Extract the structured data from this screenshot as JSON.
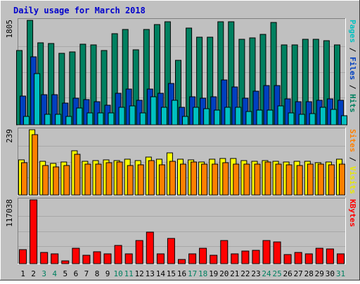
{
  "chart_data": {
    "type": "bar",
    "title": "Daily usage for March 2018",
    "categories": [
      "1",
      "2",
      "3",
      "4",
      "5",
      "6",
      "7",
      "8",
      "9",
      "10",
      "11",
      "12",
      "13",
      "14",
      "15",
      "16",
      "17",
      "18",
      "19",
      "20",
      "21",
      "22",
      "23",
      "24",
      "25",
      "26",
      "27",
      "28",
      "29",
      "30",
      "31"
    ],
    "weekend_days": [
      "3",
      "4",
      "10",
      "11",
      "17",
      "18",
      "24",
      "25",
      "31"
    ],
    "panels": [
      {
        "id": "pages-files-hits",
        "ymax_label": "1805",
        "ymax": 1805,
        "axis_label_parts": [
          {
            "text": "Pages",
            "color": "#00c0c0"
          },
          {
            "text": " / ",
            "color": "#000000"
          },
          {
            "text": "Files",
            "color": "#0040c0"
          },
          {
            "text": " / ",
            "color": "#000000"
          },
          {
            "text": "Hits",
            "color": "#008060"
          }
        ],
        "series": [
          {
            "name": "Hits",
            "color": "#008060",
            "values": [
              1280,
              1805,
              1420,
              1400,
              1230,
              1260,
              1390,
              1380,
              1280,
              1580,
              1650,
              1300,
              1650,
              1730,
              1780,
              1120,
              1670,
              1520,
              1520,
              1780,
              1780,
              1480,
              1500,
              1560,
              1770,
              1380,
              1380,
              1480,
              1480,
              1450,
              1380
            ]
          },
          {
            "name": "Files",
            "color": "#0040c0",
            "values": [
              500,
              1180,
              520,
              520,
              380,
              460,
              440,
              400,
              340,
              540,
              620,
              420,
              620,
              540,
              720,
              300,
              480,
              460,
              480,
              780,
              660,
              460,
              580,
              680,
              680,
              450,
              400,
              400,
              420,
              450,
              420
            ]
          },
          {
            "name": "Pages",
            "color": "#00c0c0",
            "values": [
              150,
              880,
              180,
              180,
              140,
              290,
              210,
              200,
              210,
              300,
              330,
              200,
              480,
              300,
              420,
              140,
              300,
              280,
              260,
              300,
              300,
              230,
              260,
              250,
              330,
              200,
              180,
              190,
              300,
              270,
              160
            ]
          }
        ]
      },
      {
        "id": "sites-visits",
        "ymax_label": "239",
        "ymax": 239,
        "axis_label_parts": [
          {
            "text": "Sites",
            "color": "#ff8000"
          },
          {
            "text": " / ",
            "color": "#000000"
          },
          {
            "text": "Visits",
            "color": "#e8e800"
          }
        ],
        "series": [
          {
            "name": "Visits",
            "color": "#ffff00",
            "values": [
              129,
              239,
              124,
              116,
              122,
              163,
              124,
              126,
              129,
              126,
              132,
              127,
              140,
              130,
              154,
              130,
              128,
              120,
              130,
              134,
              134,
              126,
              124,
              127,
              124,
              122,
              124,
              124,
              117,
              120,
              130
            ]
          },
          {
            "name": "Sites",
            "color": "#ff8000",
            "values": [
              118,
              222,
              108,
              104,
              108,
              148,
              114,
              112,
              118,
              120,
              108,
              110,
              126,
              110,
              124,
              112,
              122,
              112,
              112,
              118,
              114,
              114,
              114,
              120,
              112,
              110,
              108,
              114,
              112,
              110,
              112
            ]
          }
        ]
      },
      {
        "id": "kbytes",
        "ymax_label": "117038",
        "ymax": 117038,
        "axis_label_parts": [
          {
            "text": "KBytes",
            "color": "#ff0000"
          }
        ],
        "series": [
          {
            "name": "KBytes",
            "color": "#ff0000",
            "values": [
              25500,
              117038,
              20000,
              18000,
              5000,
              28000,
              15000,
              22000,
              18000,
              34000,
              18000,
              42000,
              58000,
              18000,
              46000,
              8000,
              17500,
              28000,
              15000,
              42000,
              18000,
              23500,
              24500,
              42000,
              40000,
              17000,
              20000,
              18500,
              28500,
              27500,
              18500
            ]
          }
        ]
      }
    ]
  }
}
